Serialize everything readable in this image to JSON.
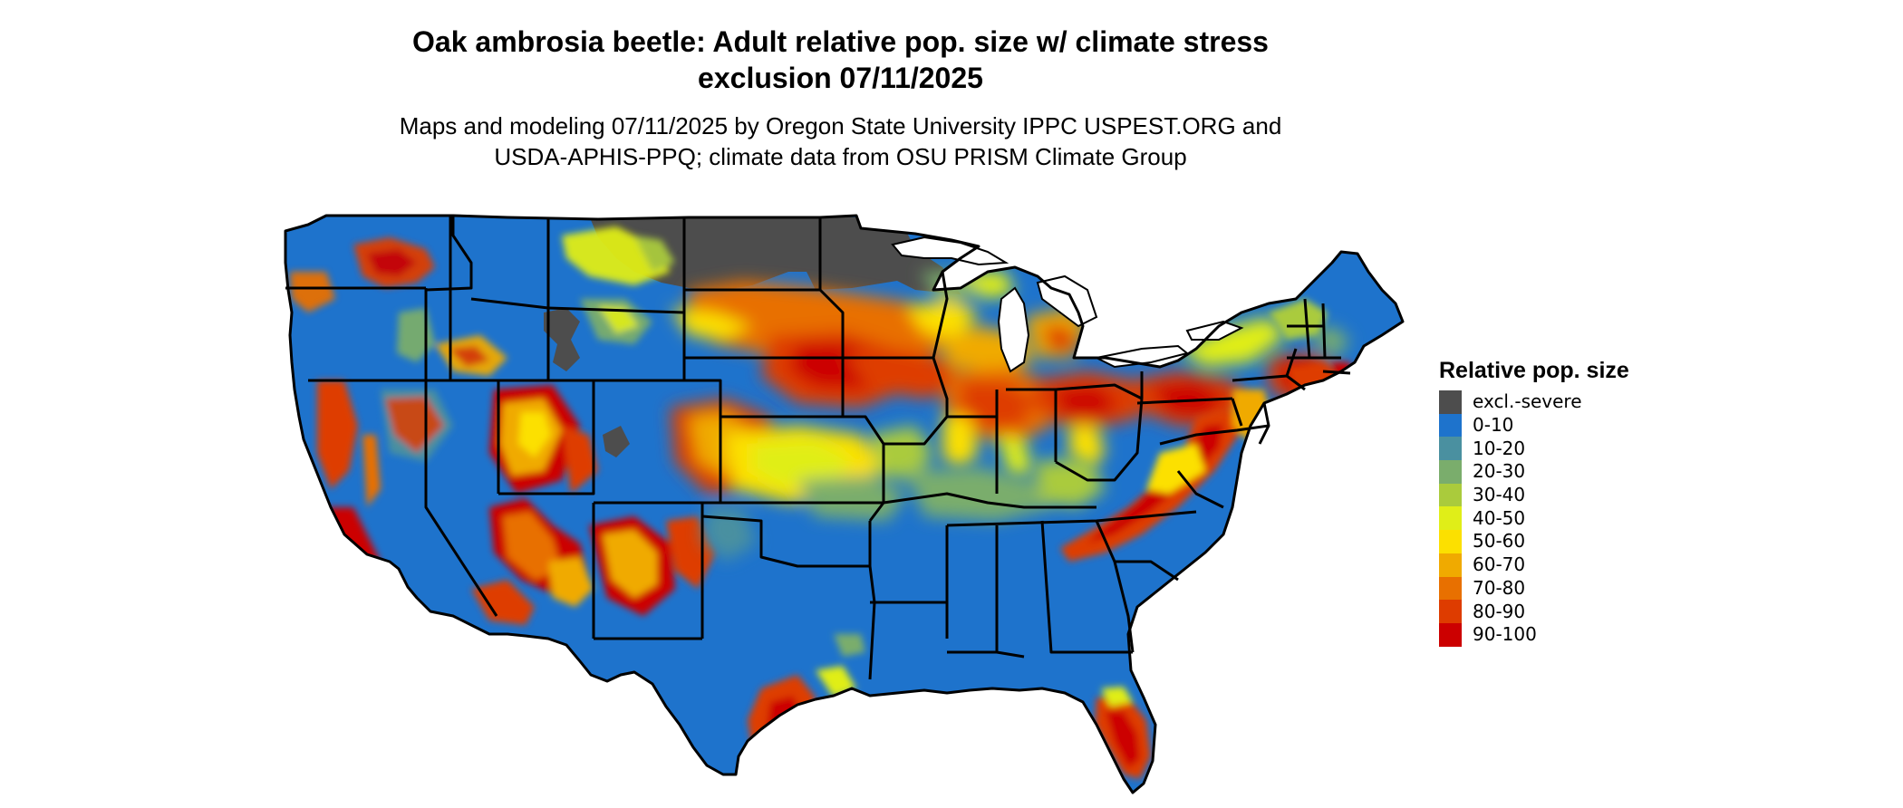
{
  "title": {
    "line1": "Oak ambrosia beetle: Adult relative pop. size w/ climate stress",
    "line2": "exclusion 07/11/2025"
  },
  "subtitle": {
    "line1": "Maps and modeling 07/11/2025 by Oregon State University IPPC USPEST.ORG and",
    "line2": "USDA-APHIS-PPQ; climate data from OSU PRISM Climate Group"
  },
  "legend": {
    "title": "Relative pop. size",
    "items": [
      {
        "label": "excl.-severe",
        "color": "#4d4d4d"
      },
      {
        "label": "0-10",
        "color": "#1e73cc"
      },
      {
        "label": "10-20",
        "color": "#4a90a0"
      },
      {
        "label": "20-30",
        "color": "#7aad6c"
      },
      {
        "label": "30-40",
        "color": "#aacb3c"
      },
      {
        "label": "40-50",
        "color": "#e0ee18"
      },
      {
        "label": "50-60",
        "color": "#fce000"
      },
      {
        "label": "60-70",
        "color": "#f0aa00"
      },
      {
        "label": "70-80",
        "color": "#e87000"
      },
      {
        "label": "80-90",
        "color": "#de3c00"
      },
      {
        "label": "90-100",
        "color": "#cc0000"
      }
    ]
  },
  "map": {
    "region": "Contiguous United States",
    "base_color": "#1e73cc",
    "exclusion_color": "#4d4d4d",
    "border_color": "#000000"
  }
}
